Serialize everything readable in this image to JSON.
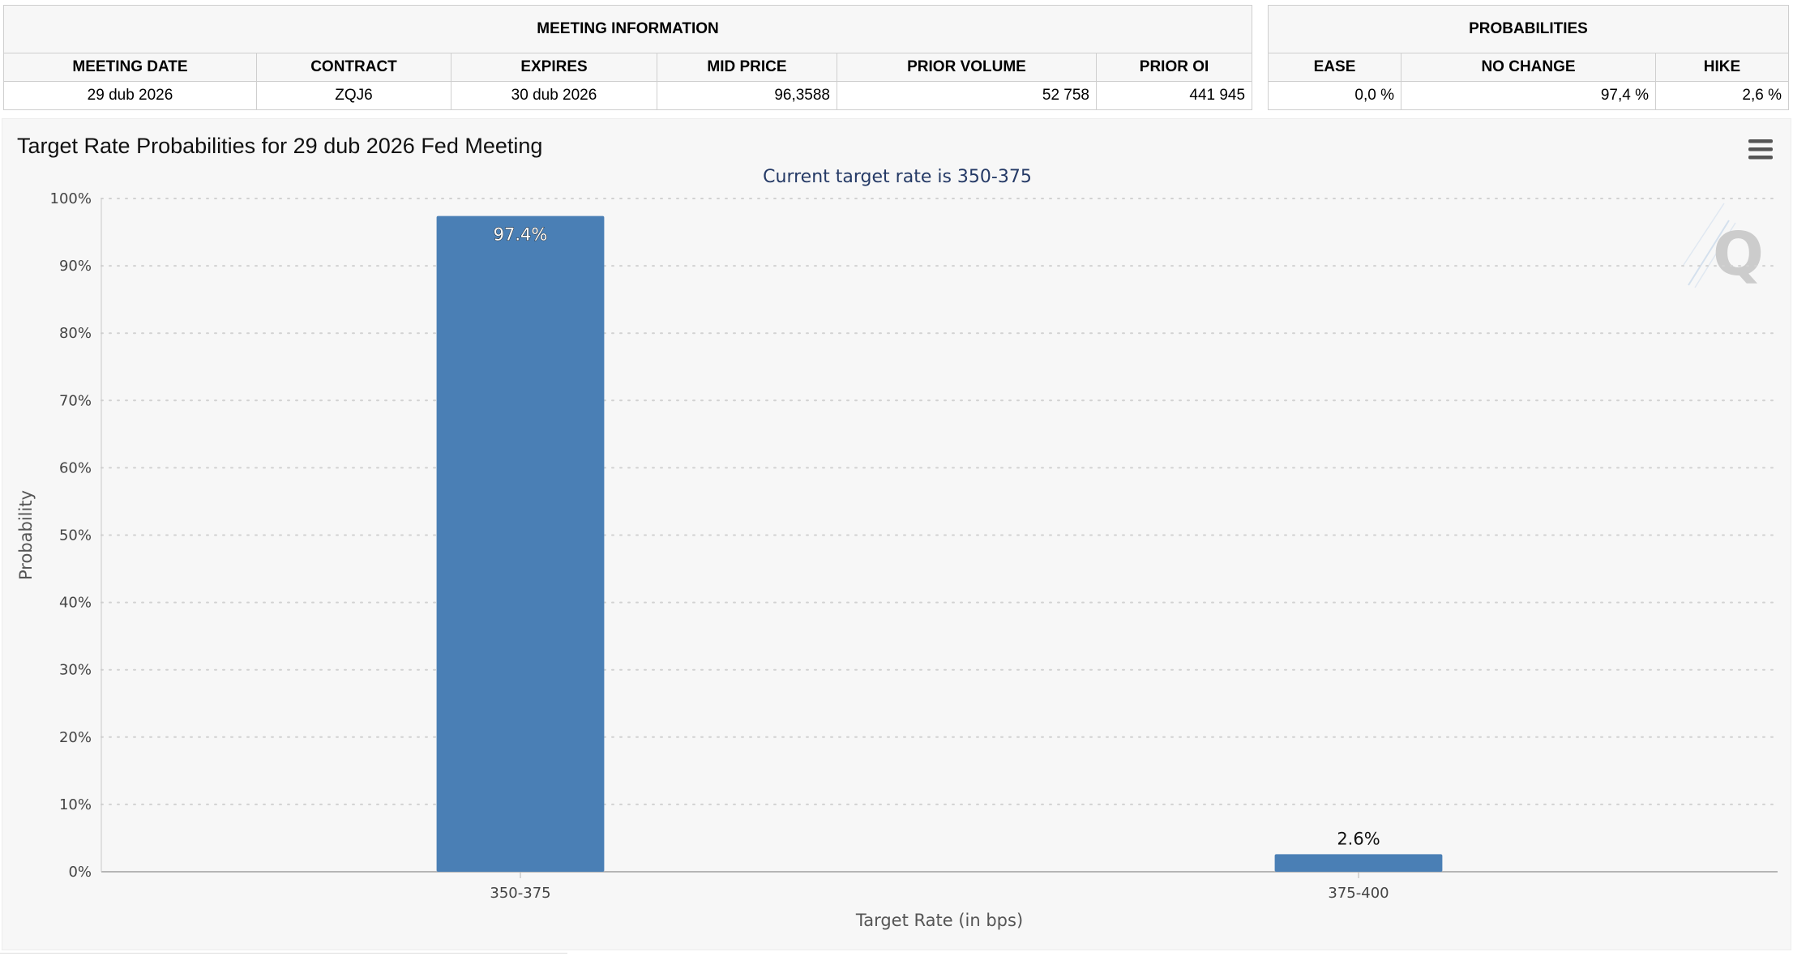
{
  "meeting_info": {
    "header": "MEETING INFORMATION",
    "columns": [
      "MEETING DATE",
      "CONTRACT",
      "EXPIRES",
      "MID PRICE",
      "PRIOR VOLUME",
      "PRIOR OI"
    ],
    "row": [
      "29 dub 2026",
      "ZQJ6",
      "30 dub 2026",
      "96,3588",
      "52 758",
      "441 945"
    ]
  },
  "probabilities": {
    "header": "PROBABILITIES",
    "columns": [
      "EASE",
      "NO CHANGE",
      "HIKE"
    ],
    "row": [
      "0,0 %",
      "97,4 %",
      "2,6 %"
    ]
  },
  "colors": {
    "bar": "#4a7fb5",
    "grid": "#d2d2d2",
    "panel": "#f7f7f7"
  },
  "menu_icon": "hamburger-icon",
  "watermark_icon": "q-logo-watermark",
  "chart_data": {
    "type": "bar",
    "title": "Target Rate Probabilities for 29 dub 2026 Fed Meeting",
    "subtitle": "Current target rate is 350-375",
    "categories": [
      "350-375",
      "375-400"
    ],
    "values": [
      97.4,
      2.6
    ],
    "data_labels": [
      "97.4%",
      "2.6%"
    ],
    "xlabel": "Target Rate (in bps)",
    "ylabel": "Probability",
    "ylim": [
      0,
      100
    ],
    "y_ticks": [
      0,
      10,
      20,
      30,
      40,
      50,
      60,
      70,
      80,
      90,
      100
    ],
    "y_tick_labels": [
      "0%",
      "10%",
      "20%",
      "30%",
      "40%",
      "50%",
      "60%",
      "70%",
      "80%",
      "90%",
      "100%"
    ],
    "grid": true,
    "legend": "none"
  }
}
